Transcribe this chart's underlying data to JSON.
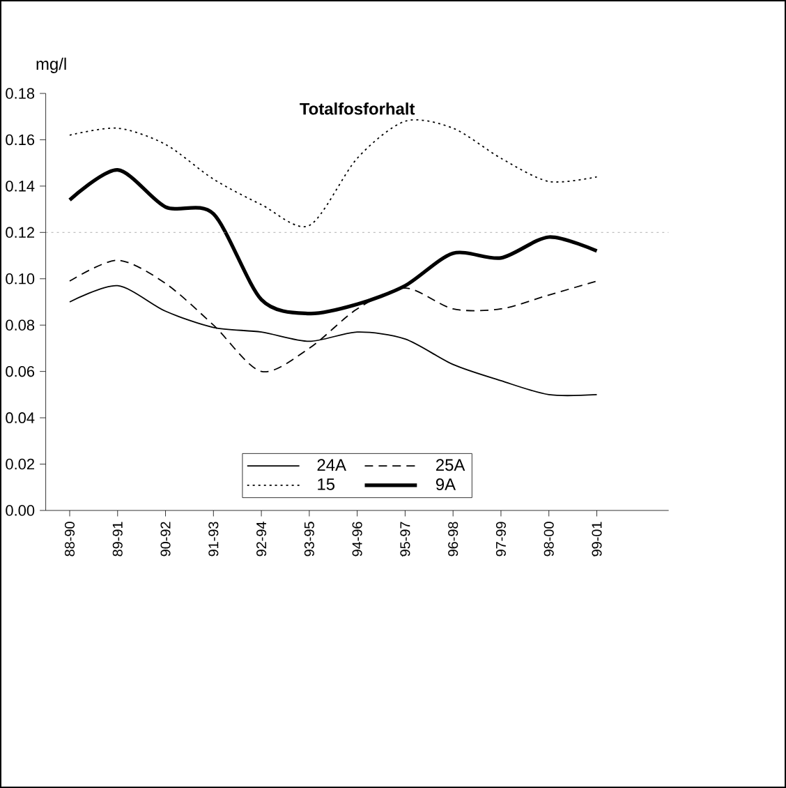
{
  "chart_data": {
    "type": "line",
    "title": "Totalfosforhalt",
    "ylabel": "mg/l",
    "categories": [
      "88-90",
      "89-91",
      "90-92",
      "91-93",
      "92-94",
      "93-95",
      "94-96",
      "95-97",
      "96-98",
      "97-99",
      "98-00",
      "99-01"
    ],
    "series": [
      {
        "name": "24A",
        "color": "#000000",
        "line_style": "solid",
        "values": [
          0.09,
          0.097,
          0.086,
          0.079,
          0.077,
          0.073,
          0.077,
          0.074,
          0.063,
          0.056,
          0.05,
          0.05
        ]
      },
      {
        "name": "25A",
        "color": "#000000",
        "line_style": "dashed",
        "values": [
          0.099,
          0.108,
          0.098,
          0.08,
          0.06,
          0.07,
          0.087,
          0.096,
          0.087,
          0.087,
          0.093,
          0.099
        ]
      },
      {
        "name": "15",
        "color": "#000000",
        "line_style": "dotted",
        "values": [
          0.162,
          0.165,
          0.158,
          0.143,
          0.132,
          0.123,
          0.152,
          0.168,
          0.165,
          0.152,
          0.142,
          0.144
        ]
      },
      {
        "name": "9A",
        "color": "#000000",
        "line_style": "solid",
        "values": [
          0.134,
          0.147,
          0.131,
          0.128,
          0.091,
          0.085,
          0.089,
          0.097,
          0.111,
          0.109,
          0.118,
          0.112
        ]
      }
    ],
    "ylim": [
      0,
      0.18
    ],
    "yticks": [
      {
        "value": 0,
        "label": "0.00"
      },
      {
        "value": 0.02,
        "label": "0.02"
      },
      {
        "value": 0.04,
        "label": "0.04"
      },
      {
        "value": 0.06,
        "label": "0.06"
      },
      {
        "value": 0.08,
        "label": "0.08"
      },
      {
        "value": 0.1,
        "label": "0.10"
      },
      {
        "value": 0.12,
        "label": "0.12"
      },
      {
        "value": 0.14,
        "label": "0.14"
      },
      {
        "value": 0.16,
        "label": "0.16"
      },
      {
        "value": 0.18,
        "label": "0.18"
      }
    ],
    "ref_lines": [
      {
        "axis": "y",
        "value": 0.12,
        "color": "#999999",
        "line_style": "dotted"
      }
    ],
    "grid": false,
    "legend": "bottom",
    "marker": "none"
  }
}
